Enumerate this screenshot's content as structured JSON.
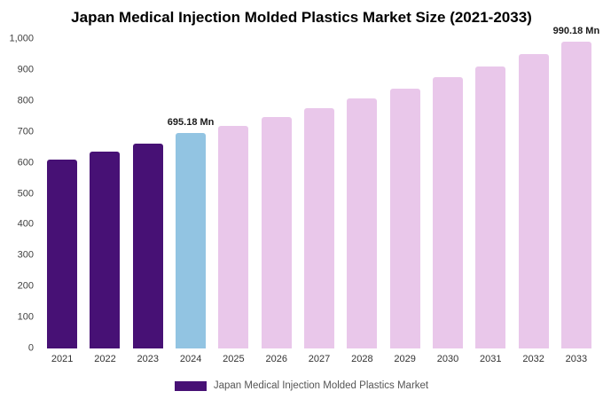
{
  "title": "Japan Medical Injection Molded Plastics Market Size (2021-2033)",
  "chart_data": {
    "type": "bar",
    "title": "Japan Medical Injection Molded Plastics Market Size (2021-2033)",
    "xlabel": "",
    "ylabel": "",
    "unit": "Mn",
    "categories": [
      "2021",
      "2022",
      "2023",
      "2024",
      "2025",
      "2026",
      "2027",
      "2028",
      "2029",
      "2030",
      "2031",
      "2032",
      "2033"
    ],
    "values": [
      610,
      637,
      662,
      695.18,
      718,
      747,
      776,
      807,
      841,
      876,
      912,
      951,
      990.18
    ],
    "ylim": [
      0,
      1000
    ],
    "yticks": [
      0,
      100,
      200,
      300,
      400,
      500,
      600,
      700,
      800,
      900,
      1000
    ],
    "ytick_labels": [
      "0",
      "100",
      "200",
      "300",
      "400",
      "500",
      "600",
      "700",
      "800",
      "900",
      "1,000"
    ],
    "grid": false,
    "bar_colors": [
      "#471175",
      "#471175",
      "#471175",
      "#92c4e2",
      "#e9c7ea",
      "#e9c7ea",
      "#e9c7ea",
      "#e9c7ea",
      "#e9c7ea",
      "#e9c7ea",
      "#e9c7ea",
      "#e9c7ea",
      "#e9c7ea"
    ],
    "annotations": [
      {
        "category": "2024",
        "text": "695.18 Mn"
      },
      {
        "category": "2033",
        "text": "990.18 Mn"
      }
    ],
    "legend": {
      "position": "bottom",
      "swatch_color": "#471175",
      "label": "Japan Medical Injection Molded Plastics Market"
    }
  }
}
